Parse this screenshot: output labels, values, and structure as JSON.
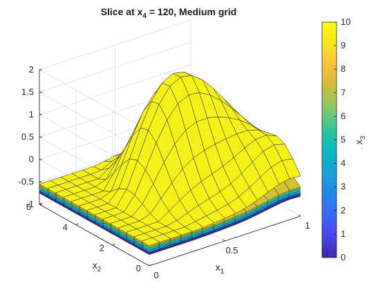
{
  "chart_data": {
    "type": "surface",
    "title": "Slice at x4 = 120, Medium grid",
    "title_parts": {
      "prefix": "Slice  at  x",
      "sub": "4",
      "suffix": "  =  120,  Medium  grid"
    },
    "xlabel": "x1",
    "xlabel_parts": {
      "base": "x",
      "sub": "1"
    },
    "ylabel": "x2",
    "ylabel_parts": {
      "base": "x",
      "sub": "2"
    },
    "zlabel": "",
    "colorbar_label": "x3",
    "colorbar_label_parts": {
      "base": "x",
      "sub": "3"
    },
    "xlim": [
      0,
      1
    ],
    "ylim": [
      0,
      6
    ],
    "zlim": [
      -1,
      2
    ],
    "clim": [
      0,
      10
    ],
    "x_ticks": [
      0,
      0.5,
      1
    ],
    "x_tick_labels": [
      "0",
      "0.5",
      "1"
    ],
    "y_ticks": [
      0,
      2,
      4,
      6
    ],
    "y_tick_labels": [
      "0",
      "2",
      "4",
      "6"
    ],
    "z_ticks": [
      -1,
      -0.5,
      0,
      0.5,
      1,
      1.5,
      2
    ],
    "z_tick_labels": [
      "-1",
      "-0.5",
      "0",
      "0.5",
      "1",
      "1.5",
      "2"
    ],
    "colorbar_ticks": [
      0,
      1,
      2,
      3,
      4,
      5,
      6,
      7,
      8,
      9,
      10
    ],
    "colorbar_tick_labels": [
      "0",
      "1",
      "2",
      "3",
      "4",
      "5",
      "6",
      "7",
      "8",
      "9",
      "10"
    ],
    "colormap": "parula",
    "grid": true,
    "colorbar_location": "right",
    "colormap_stops": [
      "#3e26a8",
      "#4746eb",
      "#3e68fe",
      "#1c8ae7",
      "#1ba3d7",
      "#08b8c3",
      "#31c596",
      "#8ac867",
      "#cfbc3a",
      "#fdbe3c",
      "#f8e225",
      "#f9fb0e"
    ],
    "slices": [
      {
        "x3": 0,
        "color": "#3d2ca8",
        "peak_z": 0.35
      },
      {
        "x3": 1,
        "color": "#3e3fd6",
        "peak_z": 0.4
      },
      {
        "x3": 2,
        "color": "#2a6fe3",
        "peak_z": 0.45
      },
      {
        "x3": 3,
        "color": "#11a2d8",
        "peak_z": 0.5
      },
      {
        "x3": 5,
        "color": "#1fbfb0",
        "peak_z": 0.58
      },
      {
        "x3": 7,
        "color": "#88c85e",
        "peak_z": 0.65
      },
      {
        "x3": 8.5,
        "color": "#d6c036",
        "peak_z": 0.72
      },
      {
        "x3": 10,
        "color": "#f5f01a",
        "peak_z": 2.0
      }
    ]
  }
}
